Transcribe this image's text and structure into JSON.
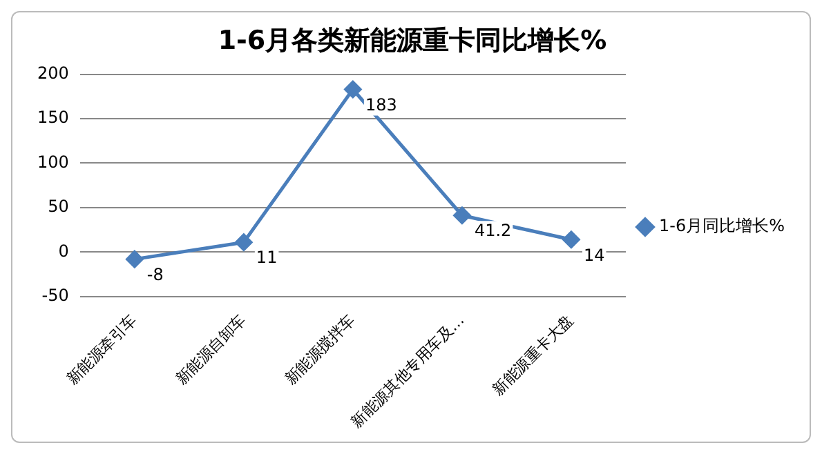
{
  "chart_data": {
    "type": "line",
    "title": "1-6月各类新能源重卡同比增长%",
    "categories": [
      "新能源牵引车",
      "新能源自卸车",
      "新能源搅拌车",
      "新能源其他专用车及…",
      "新能源重卡大盘"
    ],
    "series": [
      {
        "name": "1-6月同比增长%",
        "color": "#4a7ebb",
        "values": [
          -8,
          11,
          183,
          41.2,
          14
        ]
      }
    ],
    "ylim": [
      -50,
      200
    ],
    "yticks": [
      -50,
      0,
      50,
      100,
      150,
      200
    ],
    "grid": "y",
    "legend": "right",
    "marker": "diamond",
    "line_style": "solid",
    "data_labels": true
  }
}
